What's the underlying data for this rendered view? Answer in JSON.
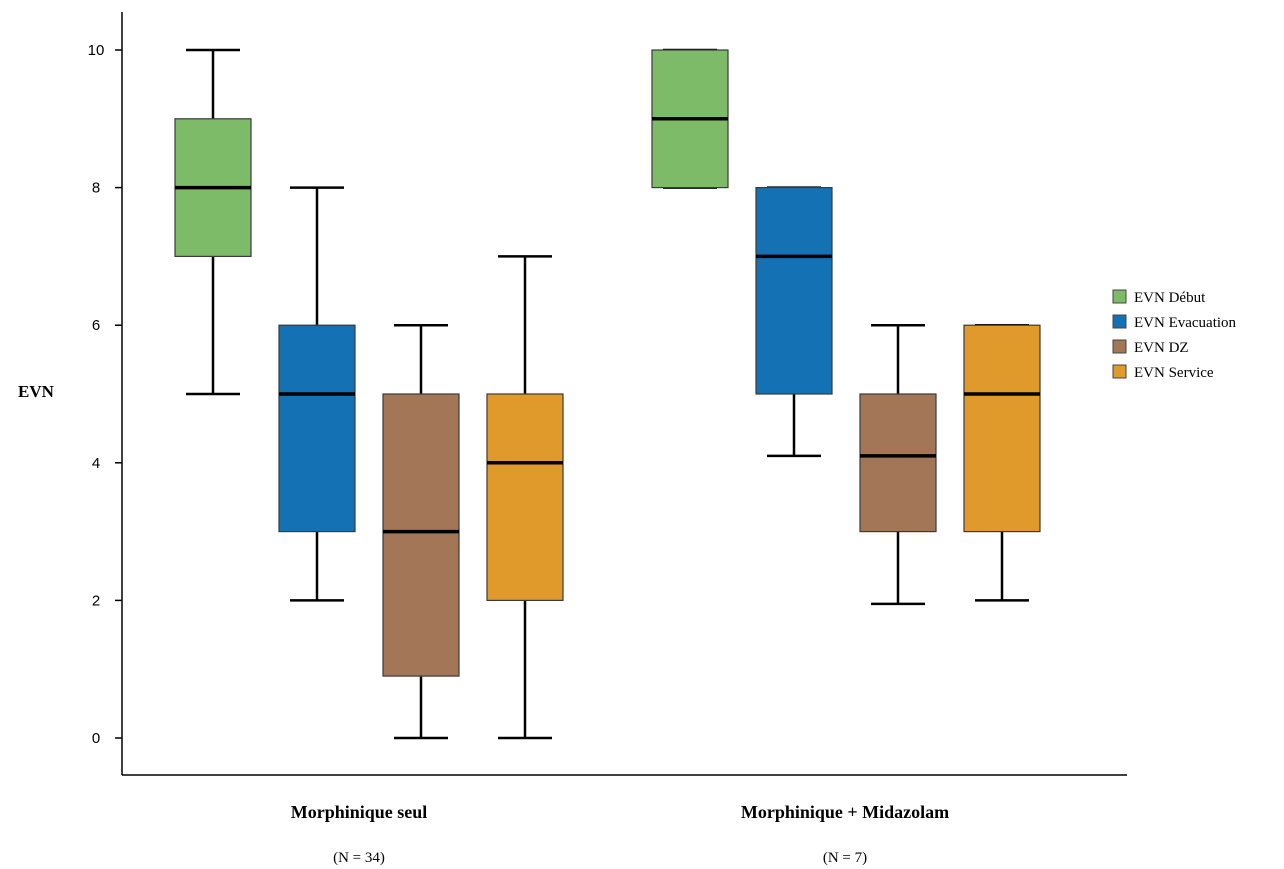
{
  "chart_data": {
    "type": "boxplot",
    "ylabel": "EVN",
    "xlabel": "",
    "title": "",
    "ylim": [
      -0.5,
      10.5
    ],
    "yticks": [
      0,
      2,
      4,
      6,
      8,
      10
    ],
    "grid": false,
    "legend_position": "right",
    "categories": [
      {
        "label": "Morphinique seul",
        "n_label": "(N = 34)"
      },
      {
        "label": "Morphinique + Midazolam",
        "n_label": "(N = 7)"
      }
    ],
    "series": [
      {
        "name": "EVN Début",
        "color": "#7dbb68",
        "boxes": [
          {
            "whisker_low": 5,
            "q1": 7,
            "median": 8,
            "q3": 9,
            "whisker_high": 10
          },
          {
            "whisker_low": 8,
            "q1": 8,
            "median": 9,
            "q3": 10,
            "whisker_high": 10
          }
        ]
      },
      {
        "name": "EVN Evacuation",
        "color": "#1472b4",
        "boxes": [
          {
            "whisker_low": 2,
            "q1": 3,
            "median": 5,
            "q3": 6,
            "whisker_high": 8
          },
          {
            "whisker_low": 4.1,
            "q1": 5,
            "median": 7,
            "q3": 8,
            "whisker_high": 8
          }
        ]
      },
      {
        "name": "EVN DZ",
        "color": "#a27657",
        "boxes": [
          {
            "whisker_low": 0,
            "q1": 0.9,
            "median": 3,
            "q3": 5,
            "whisker_high": 6
          },
          {
            "whisker_low": 1.95,
            "q1": 3,
            "median": 4.1,
            "q3": 5,
            "whisker_high": 6
          }
        ]
      },
      {
        "name": "EVN Service",
        "color": "#e09a2c",
        "boxes": [
          {
            "whisker_low": 0,
            "q1": 2,
            "median": 4,
            "q3": 5,
            "whisker_high": 7
          },
          {
            "whisker_low": 2,
            "q1": 3,
            "median": 5,
            "q3": 6,
            "whisker_high": 6
          }
        ]
      }
    ]
  }
}
